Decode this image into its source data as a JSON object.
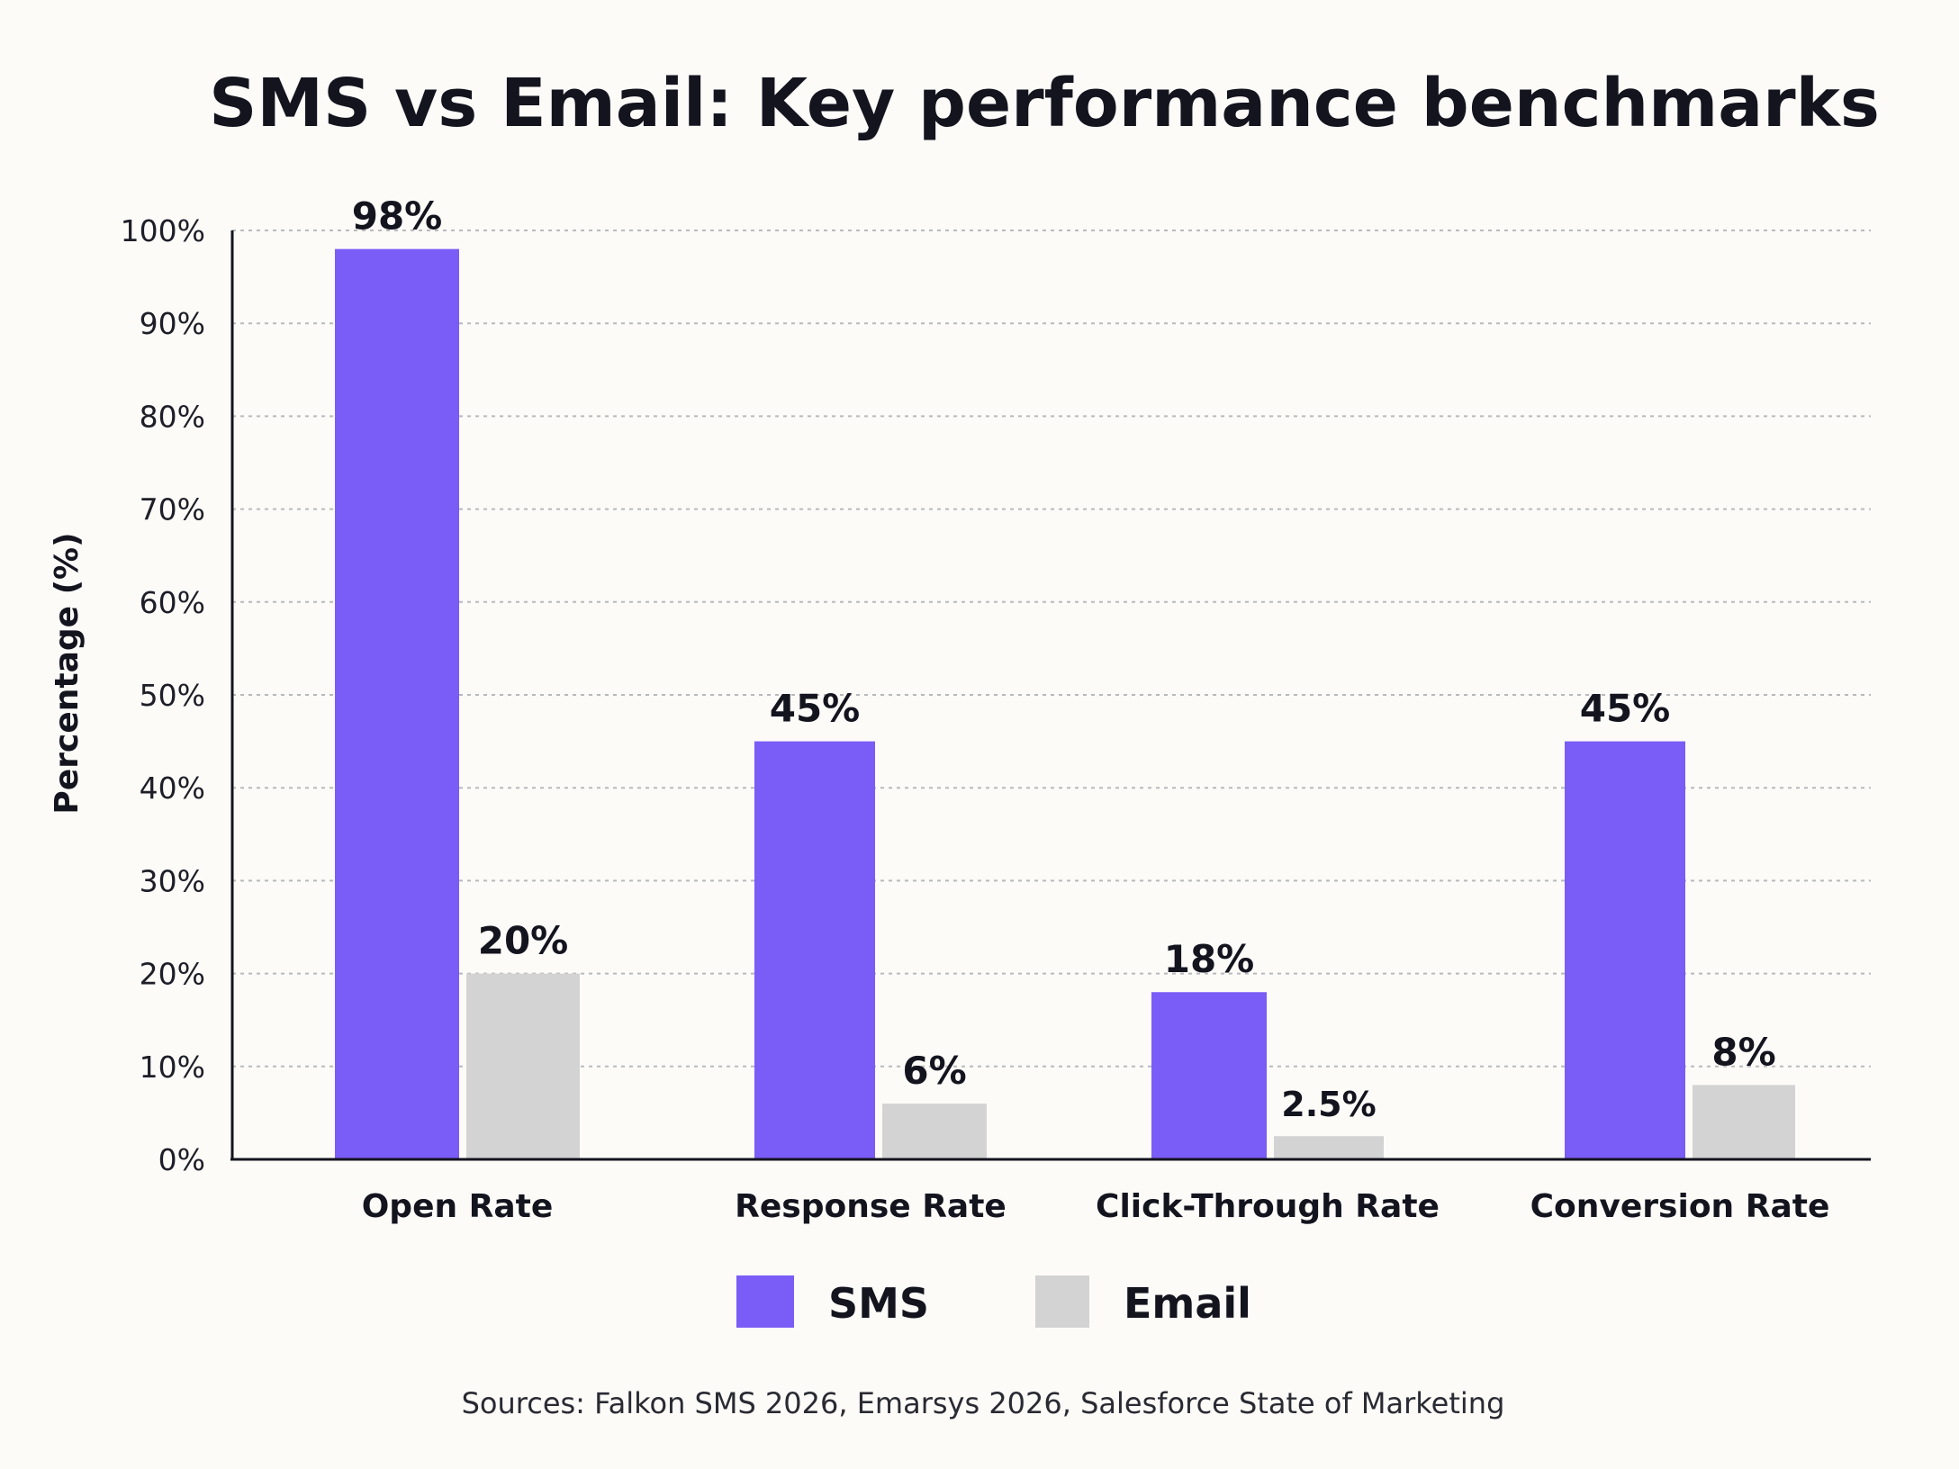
{
  "colors": {
    "sms": "#7a5cf7",
    "email": "#d3d3d4",
    "background": "#fcfbf8"
  },
  "chart_data": {
    "type": "bar",
    "title": "SMS vs Email: Key performance benchmarks",
    "ylabel": "Percentage (%)",
    "xlabel": "",
    "ylim": [
      0,
      100
    ],
    "yticks": [
      "0%",
      "10%",
      "20%",
      "30%",
      "40%",
      "50%",
      "60%",
      "70%",
      "80%",
      "90%",
      "100%"
    ],
    "grid": true,
    "legend_position": "bottom",
    "categories": [
      "Open Rate",
      "Response Rate",
      "Click-Through Rate",
      "Conversion Rate"
    ],
    "series": [
      {
        "name": "SMS",
        "values": [
          98,
          45,
          18,
          45
        ],
        "labels": [
          "98%",
          "45%",
          "18%",
          "45%"
        ]
      },
      {
        "name": "Email",
        "values": [
          20,
          6,
          2.5,
          8
        ],
        "labels": [
          "20%",
          "6%",
          "2.5%",
          "8%"
        ]
      }
    ],
    "source": "Sources: Falkon SMS 2026, Emarsys 2026, Salesforce State of Marketing"
  }
}
